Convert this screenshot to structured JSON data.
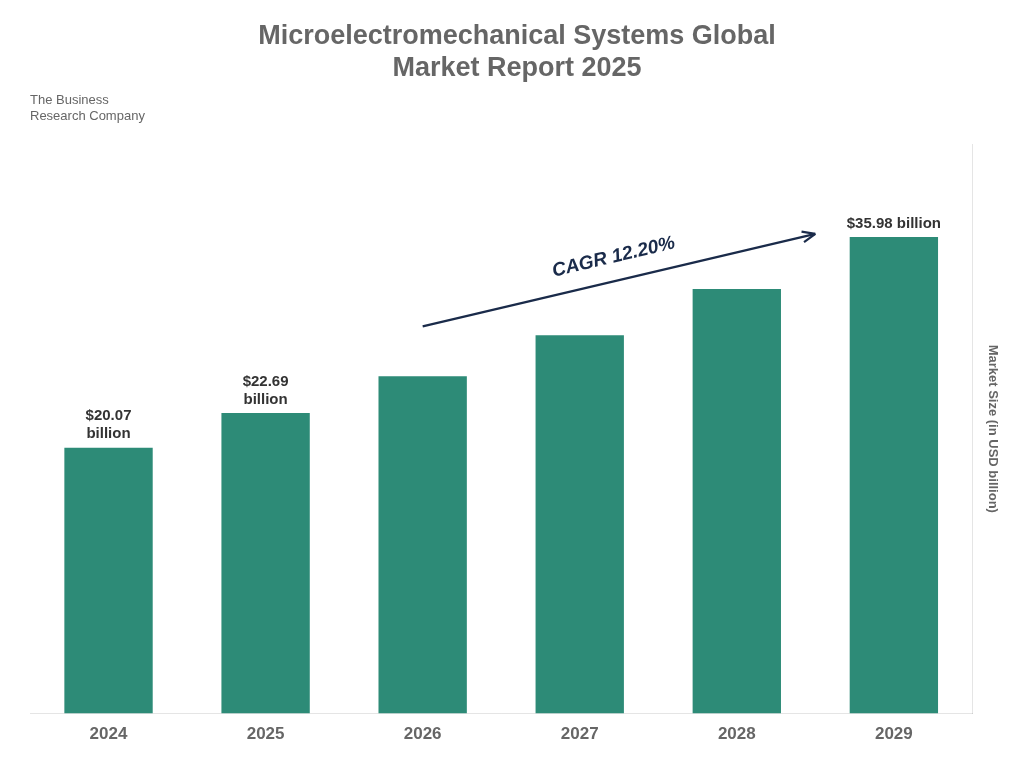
{
  "chart_data": {
    "type": "bar",
    "title": "Microelectromechanical Systems Global\nMarket Report 2025",
    "subtitle": "The Business\nResearch Company",
    "categories": [
      "2024",
      "2025",
      "2026",
      "2027",
      "2028",
      "2029"
    ],
    "values": [
      20.07,
      22.69,
      25.46,
      28.57,
      32.06,
      35.98
    ],
    "value_labels": [
      "$20.07\nbillion",
      "$22.69\nbillion",
      null,
      null,
      null,
      "$35.98 billion"
    ],
    "data_labels": true,
    "color": "#2d8b77",
    "ylabel": "Market Size (in USD billion)",
    "ylim": [
      0,
      43
    ],
    "yticks": [],
    "tick_labels": "x",
    "grid": false,
    "annotations": [
      "CAGR 12.20%"
    ]
  }
}
